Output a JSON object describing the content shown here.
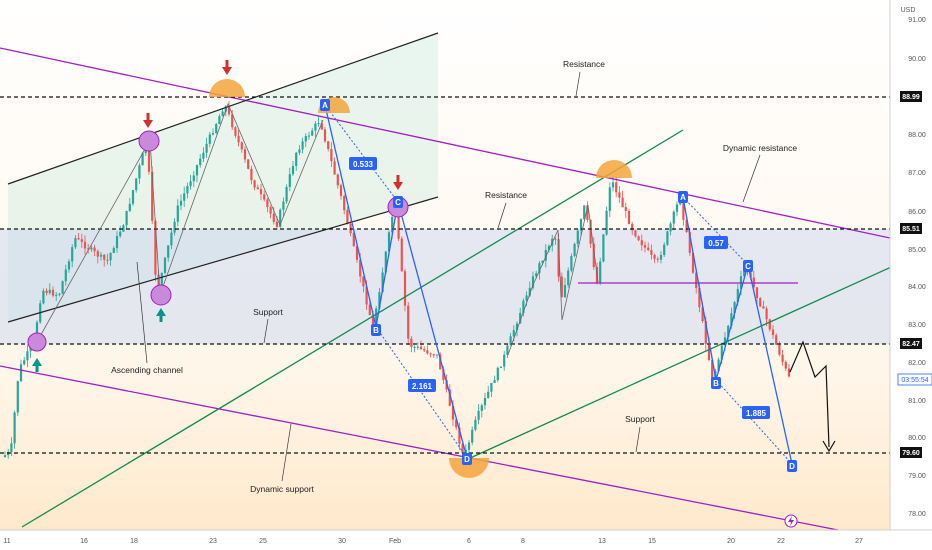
{
  "chart_data": {
    "type": "candlestick",
    "currency_label": "USD",
    "y_ticks": [
      "91.00",
      "90.00",
      "88.00",
      "87.00",
      "86.00",
      "85.00",
      "84.00",
      "83.00",
      "82.00",
      "81.00",
      "80.00",
      "79.00",
      "78.00"
    ],
    "x_ticks": [
      "11",
      "16",
      "18",
      "23",
      "25",
      "30",
      "Feb",
      "6",
      "8",
      "13",
      "15",
      "20",
      "22",
      "27"
    ],
    "levels": [
      {
        "label": "88.99",
        "value": 88.99
      },
      {
        "label": "85.51",
        "value": 85.51
      },
      {
        "label": "82.47",
        "value": 82.47
      },
      {
        "label": "79.60",
        "value": 79.6
      }
    ],
    "countdown": "03:55:54",
    "annotations": {
      "resistance_top": "Resistance",
      "resistance_mid": "Resistance",
      "dynamic_resistance": "Dynamic resistance",
      "support_left": "Support",
      "support_right": "Support",
      "ascending_channel": "Ascending channel",
      "dynamic_support": "Dynamic support"
    },
    "pattern_points": [
      "A",
      "B",
      "C",
      "D",
      "A",
      "B",
      "C",
      "D"
    ],
    "ratios": [
      "0.533",
      "2.161",
      "0.57",
      "1.885"
    ],
    "close_price_approx": 81.5,
    "colors": {
      "up": "#26a69a",
      "down": "#ef5350",
      "channel": "#9c27b0",
      "trend": "#138a4e",
      "harmonic": "#2962ff"
    }
  }
}
